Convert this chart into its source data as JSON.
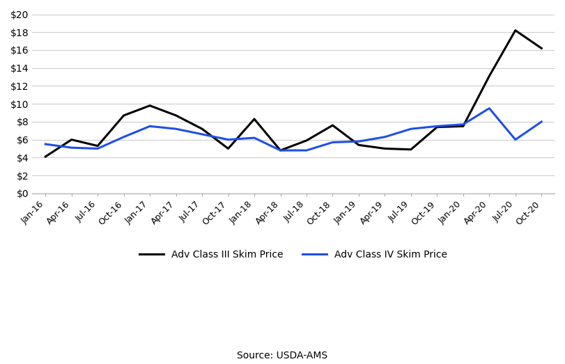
{
  "title": "",
  "source_text": "Source: USDA-AMS",
  "class3_label": "Adv Class III Skim Price",
  "class4_label": "Adv Class IV Skim Price",
  "class3_color": "#000000",
  "class4_color": "#1f4fe8",
  "line_width": 2.2,
  "ylim": [
    0,
    20
  ],
  "yticks": [
    0,
    2,
    4,
    6,
    8,
    10,
    12,
    14,
    16,
    18,
    20
  ],
  "x_labels": [
    "Jan-16",
    "Apr-16",
    "Jul-16",
    "Oct-16",
    "Jan-17",
    "Apr-17",
    "Jul-17",
    "Oct-17",
    "Jan-18",
    "Apr-18",
    "Jul-18",
    "Oct-18",
    "Jan-19",
    "Apr-19",
    "Jul-19",
    "Oct-19",
    "Jan-20",
    "Apr-20",
    "Jul-20",
    "Oct-20"
  ],
  "class3_values": [
    4.1,
    6.0,
    5.3,
    8.7,
    9.8,
    8.7,
    7.2,
    5.0,
    8.3,
    4.8,
    5.9,
    7.6,
    5.4,
    5.0,
    4.9,
    7.4,
    7.5,
    13.1,
    18.2,
    16.2
  ],
  "class4_values": [
    5.5,
    5.1,
    5.0,
    6.3,
    7.5,
    7.2,
    6.6,
    6.0,
    6.2,
    4.8,
    4.8,
    5.7,
    5.8,
    6.3,
    7.2,
    7.5,
    7.7,
    9.5,
    6.0,
    8.0
  ],
  "background_color": "#ffffff",
  "grid_color": "#cccccc"
}
